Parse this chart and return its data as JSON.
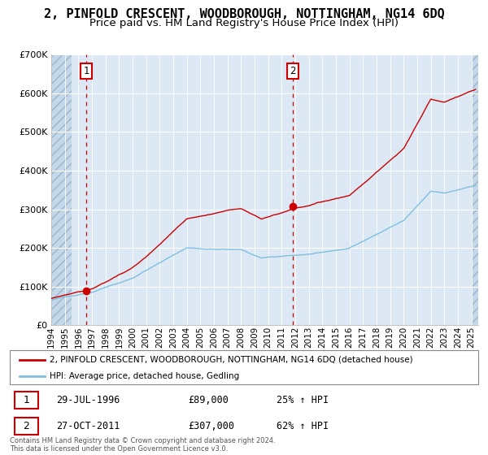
{
  "title": "2, PINFOLD CRESCENT, WOODBOROUGH, NOTTINGHAM, NG14 6DQ",
  "subtitle": "Price paid vs. HM Land Registry's House Price Index (HPI)",
  "legend_line1": "2, PINFOLD CRESCENT, WOODBOROUGH, NOTTINGHAM, NG14 6DQ (detached house)",
  "legend_line2": "HPI: Average price, detached house, Gedling",
  "sale1_label": "1",
  "sale1_date": "29-JUL-1996",
  "sale1_price": "£89,000",
  "sale1_hpi": "25% ↑ HPI",
  "sale1_year": 1996.58,
  "sale1_value": 89000,
  "sale2_label": "2",
  "sale2_date": "27-OCT-2011",
  "sale2_price": "£307,000",
  "sale2_hpi": "62% ↑ HPI",
  "sale2_year": 2011.83,
  "sale2_value": 307000,
  "hpi_color": "#7fbfdf",
  "price_color": "#cc0000",
  "background_color": "#dce9f5",
  "plot_bg": "#dce9f5",
  "ylabel": "",
  "ylim": [
    0,
    700000
  ],
  "xmin": 1994.0,
  "xmax": 2025.5,
  "yticks": [
    0,
    100000,
    200000,
    300000,
    400000,
    500000,
    600000,
    700000
  ],
  "footer": "Contains HM Land Registry data © Crown copyright and database right 2024.\nThis data is licensed under the Open Government Licence v3.0.",
  "title_fontsize": 11,
  "subtitle_fontsize": 9.5
}
